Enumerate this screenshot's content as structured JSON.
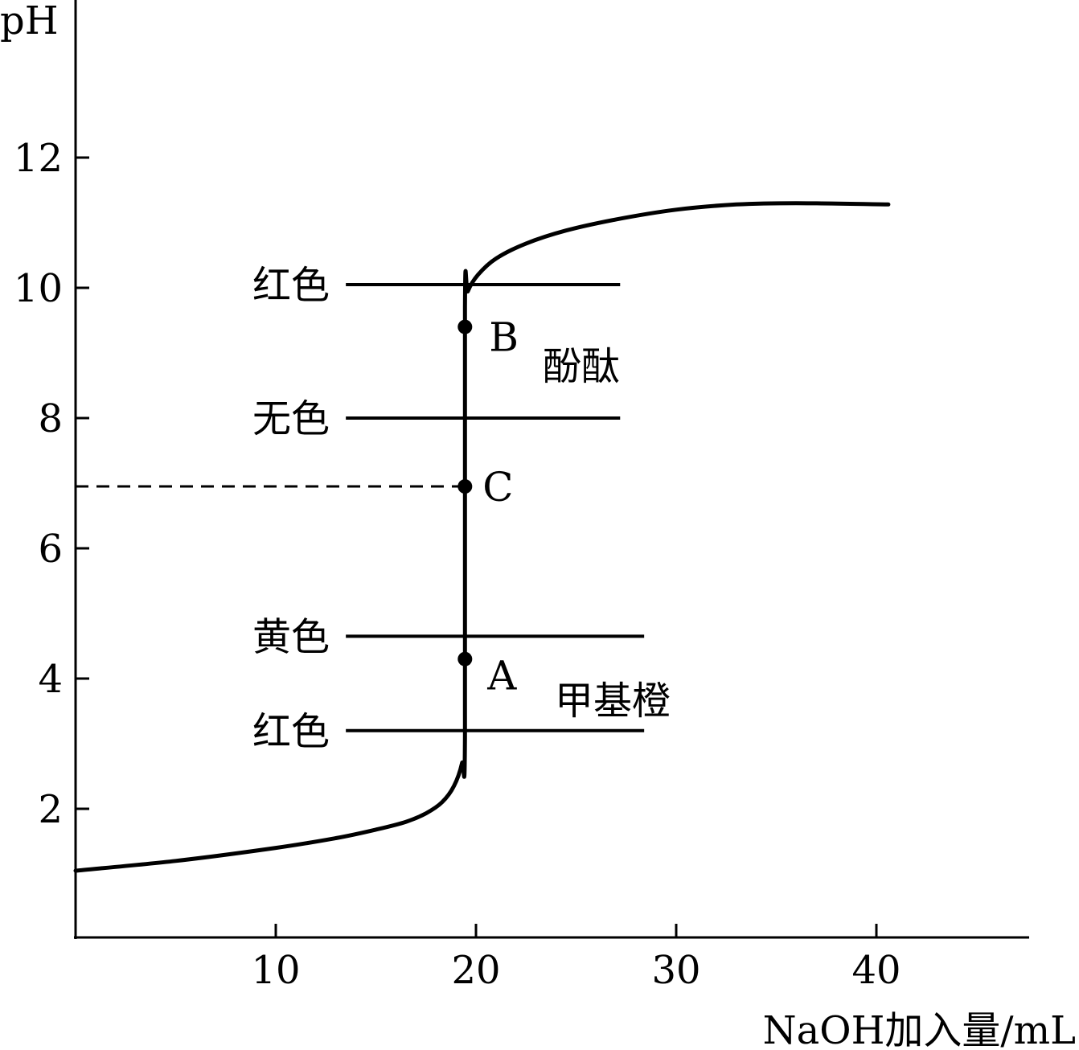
{
  "chart_data": {
    "type": "line",
    "ylabel": "pH",
    "xlabel": "NaOH加入量/mL",
    "xlim": [
      0,
      47.5
    ],
    "ylim": [
      0,
      14
    ],
    "x_ticks": [
      10,
      20,
      30,
      40
    ],
    "y_ticks": [
      2,
      4,
      6,
      8,
      10,
      12
    ],
    "grid": false,
    "series": [
      {
        "points": [
          [
            0,
            1.05
          ],
          [
            5,
            1.2
          ],
          [
            10,
            1.4
          ],
          [
            13,
            1.55
          ],
          [
            15,
            1.68
          ],
          [
            16.5,
            1.8
          ],
          [
            17.5,
            1.93
          ],
          [
            18.3,
            2.1
          ],
          [
            18.9,
            2.35
          ],
          [
            19.3,
            2.7
          ],
          [
            19.45,
            3.1
          ],
          [
            19.45,
            9.7
          ],
          [
            19.6,
            9.95
          ],
          [
            20.1,
            10.2
          ],
          [
            21,
            10.45
          ],
          [
            22.5,
            10.68
          ],
          [
            24.5,
            10.88
          ],
          [
            27,
            11.05
          ],
          [
            30,
            11.2
          ],
          [
            33,
            11.28
          ],
          [
            36,
            11.3
          ],
          [
            40.6,
            11.28
          ]
        ]
      }
    ],
    "marked_points": [
      {
        "label": "B",
        "x": 19.45,
        "y": 9.4
      },
      {
        "label": "C",
        "x": 19.45,
        "y": 6.95
      },
      {
        "label": "A",
        "x": 19.45,
        "y": 4.3
      }
    ],
    "reference_line": {
      "y": 6.95,
      "x_end": 19.45,
      "style": "dashed"
    },
    "indicator_lines": [
      {
        "label": "红色",
        "y": 10.05,
        "x_start": 13.5,
        "x_end": 27.2
      },
      {
        "label": "无色",
        "y": 8.0,
        "x_start": 13.5,
        "x_end": 27.2
      },
      {
        "label": "黄色",
        "y": 4.65,
        "x_start": 13.5,
        "x_end": 28.4
      },
      {
        "label": "红色",
        "y": 3.2,
        "x_start": 13.5,
        "x_end": 28.4
      }
    ],
    "indicator_names": [
      {
        "label": "酚酞"
      },
      {
        "label": "甲基橙"
      }
    ]
  }
}
